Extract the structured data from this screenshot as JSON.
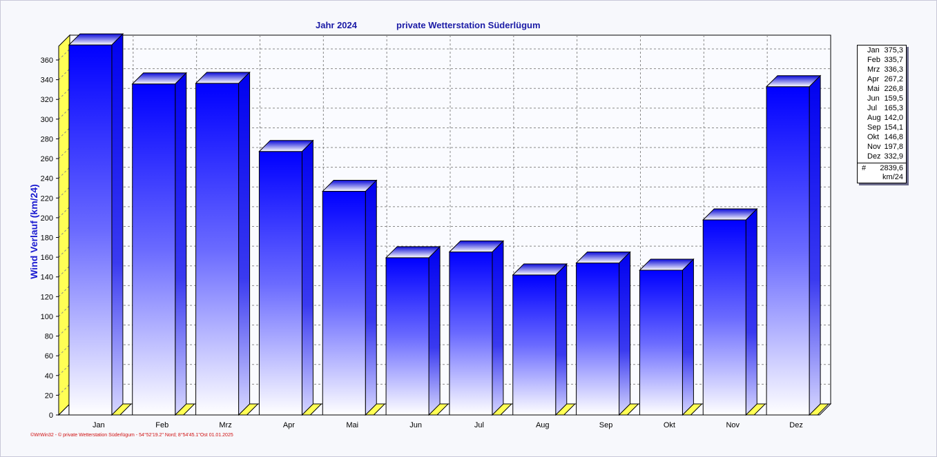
{
  "header": {
    "title_year": "Jahr  2024",
    "title_station": "private Wetterstation Süderlügum"
  },
  "footer": {
    "credit": "©WrWin32  -  © private Wetterstation Süderlügum  -  54°52'19.2\" Nord; 8°54'45.1\"Ost   01.01.2025"
  },
  "chart_data": {
    "type": "bar",
    "title": "Jahr  2024          private Wetterstation Süderlügum",
    "ylabel": "Wind Verlauf  (km/24)",
    "xlabel": "",
    "categories": [
      "Jan",
      "Feb",
      "Mrz",
      "Apr",
      "Mai",
      "Jun",
      "Jul",
      "Aug",
      "Sep",
      "Okt",
      "Nov",
      "Dez"
    ],
    "values": [
      375.3,
      335.7,
      336.3,
      267.2,
      226.8,
      159.5,
      165.3,
      142.0,
      154.1,
      146.8,
      197.8,
      332.9
    ],
    "value_labels": [
      "375,3",
      "335,7",
      "336,3",
      "267,2",
      "226,8",
      "159,5",
      "165,3",
      "142,0",
      "154,1",
      "146,8",
      "197,8",
      "332,9"
    ],
    "ylim": [
      0,
      380
    ],
    "yticks": [
      0,
      20,
      40,
      60,
      80,
      100,
      120,
      140,
      160,
      180,
      200,
      220,
      240,
      260,
      280,
      300,
      320,
      340,
      360
    ],
    "grid": true,
    "style": "3d",
    "legend_position": "right",
    "total_symbol": "#",
    "total_value": "2839,6",
    "total_unit": "km/24",
    "colors": {
      "bar_top": "#0000ff",
      "bar_bottom": "#ffffff",
      "bar_side": "#0a0ae0",
      "bar_cap": "#1e1ef0",
      "floor": "#ffff55",
      "wall": "#ffff55",
      "grid": "#888888",
      "title": "#1b1ba6",
      "ylabel": "#1b1bd0"
    }
  }
}
